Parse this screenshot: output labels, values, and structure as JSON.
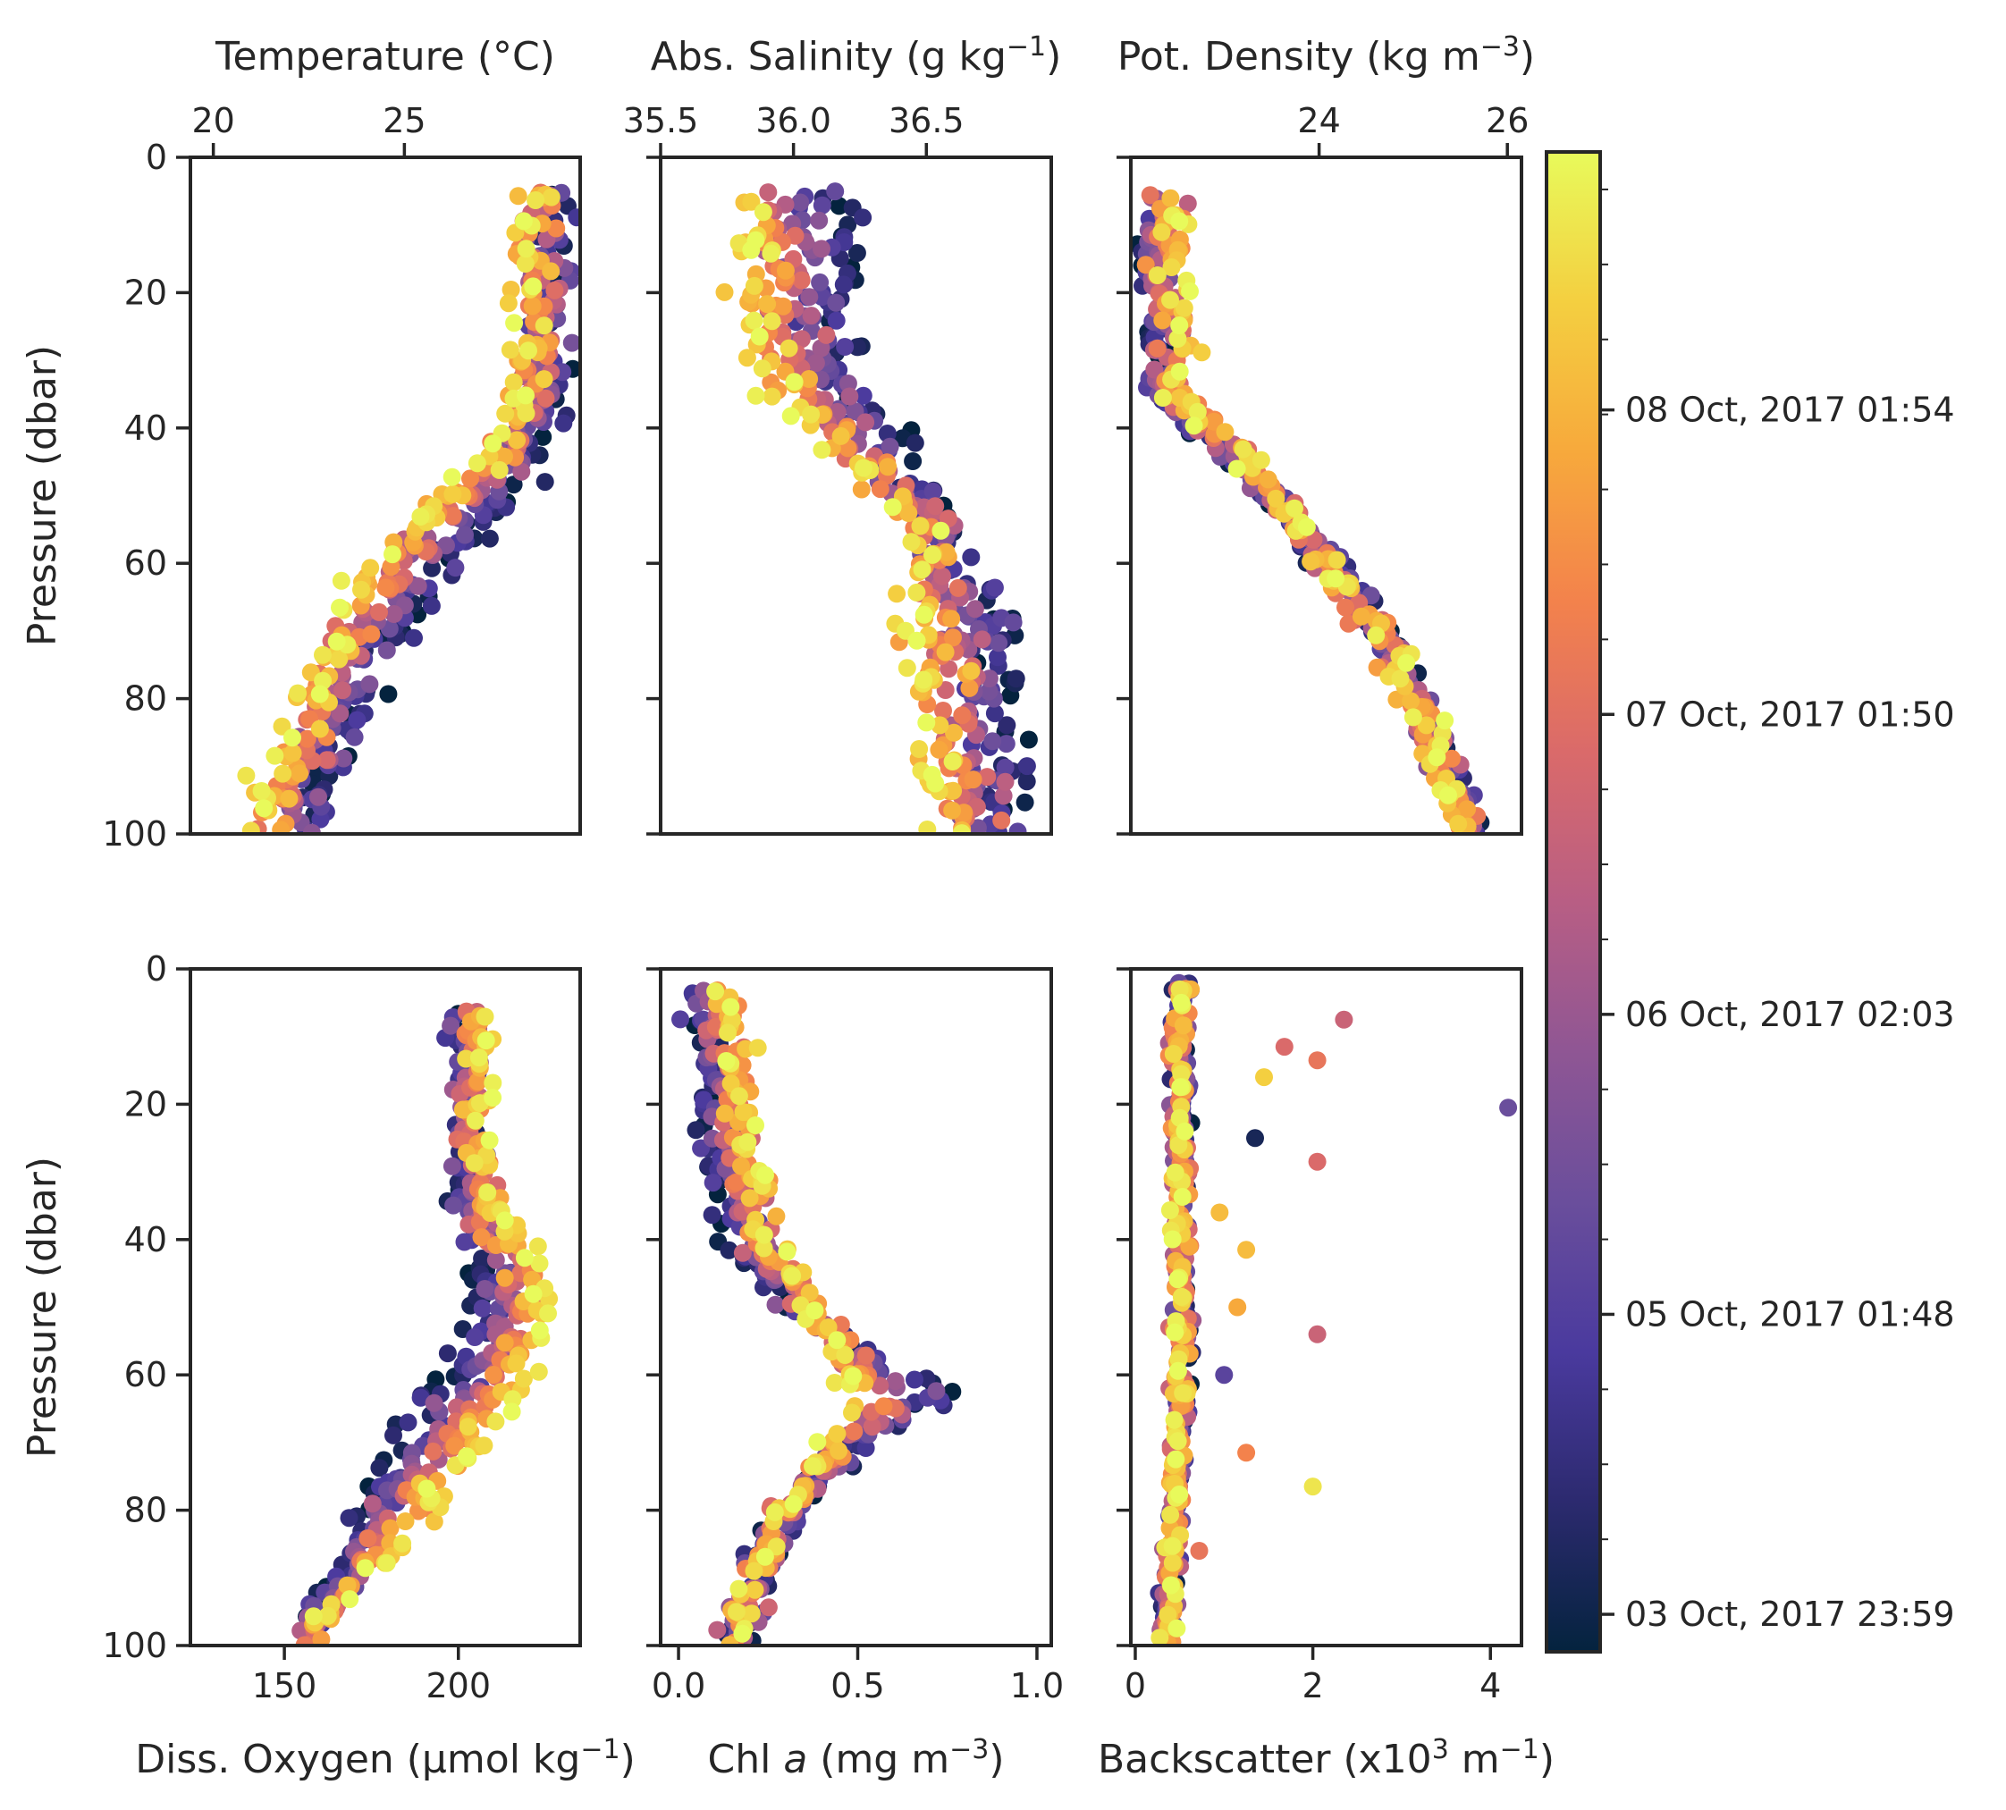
{
  "chart_data": [
    {
      "type": "scatter",
      "panel": "temperature",
      "xlabel": "Temperature (°C)",
      "xaxis_position": "top",
      "ylabel": "Pressure (dbar)",
      "xlim": [
        19.4,
        29.6
      ],
      "ylim": [
        100,
        0
      ],
      "xticks": [
        20,
        25
      ],
      "xtick_labels": [
        "20",
        "25"
      ],
      "yticks": [
        0,
        20,
        40,
        60,
        80,
        100
      ],
      "ytick_labels": [
        "0",
        "20",
        "40",
        "60",
        "80",
        "100"
      ],
      "profile": {
        "pressure": [
          5,
          20,
          30,
          38,
          42,
          46,
          50,
          55,
          60,
          65,
          70,
          75,
          80,
          85,
          90,
          95,
          100
        ],
        "value_early": [
          28.9,
          28.9,
          28.9,
          28.8,
          28.6,
          28.3,
          27.8,
          27.2,
          26.4,
          25.4,
          24.9,
          24.5,
          24.1,
          23.7,
          23.3,
          22.9,
          22.5
        ],
        "value_late": [
          28.2,
          28.2,
          28.2,
          28.0,
          27.4,
          26.6,
          25.8,
          25.0,
          24.2,
          23.6,
          23.1,
          22.7,
          22.3,
          22.0,
          21.6,
          21.3,
          21.0
        ]
      },
      "spread": 0.45
    },
    {
      "type": "scatter",
      "panel": "salinity",
      "xlabel_parts": [
        "Abs. Salinity (g kg",
        "−1",
        ")"
      ],
      "xaxis_position": "top",
      "xlim": [
        35.5,
        36.97
      ],
      "ylim": [
        100,
        0
      ],
      "xticks": [
        35.5,
        36.0,
        36.5
      ],
      "xtick_labels": [
        "35.5",
        "36.0",
        "36.5"
      ],
      "yticks": [
        0,
        20,
        40,
        60,
        80,
        100
      ],
      "profile": {
        "pressure": [
          5,
          20,
          30,
          35,
          40,
          45,
          50,
          55,
          60,
          65,
          70,
          80,
          90,
          100
        ],
        "value_early": [
          36.2,
          36.2,
          36.2,
          36.28,
          36.35,
          36.43,
          36.5,
          36.6,
          36.68,
          36.76,
          36.8,
          36.8,
          36.82,
          36.82
        ],
        "value_late": [
          35.8,
          35.8,
          35.85,
          35.95,
          36.05,
          36.2,
          36.38,
          36.45,
          36.45,
          36.43,
          36.45,
          36.48,
          36.52,
          36.58
        ]
      },
      "spread": 0.08
    },
    {
      "type": "scatter",
      "panel": "potential_density",
      "xlabel_parts": [
        "Pot. Density (kg m",
        "−3",
        ")"
      ],
      "xaxis_position": "top",
      "xlim": [
        22.0,
        26.15
      ],
      "ylim": [
        100,
        0
      ],
      "xticks": [
        24,
        26
      ],
      "xtick_labels": [
        "24",
        "26"
      ],
      "yticks": [
        0,
        20,
        40,
        60,
        80,
        100
      ],
      "profile": {
        "pressure": [
          5,
          20,
          30,
          36,
          40,
          45,
          50,
          55,
          60,
          65,
          70,
          75,
          80,
          85,
          90,
          95,
          100
        ],
        "value_early": [
          22.2,
          22.2,
          22.25,
          22.3,
          22.6,
          23.1,
          23.4,
          23.8,
          24.1,
          24.4,
          24.6,
          24.85,
          25.0,
          25.2,
          25.35,
          25.5,
          25.65
        ],
        "value_late": [
          22.5,
          22.5,
          22.55,
          22.6,
          22.9,
          23.3,
          23.6,
          23.85,
          24.1,
          24.35,
          24.55,
          24.8,
          25.0,
          25.15,
          25.3,
          25.45,
          25.6
        ]
      },
      "spread": 0.15
    },
    {
      "type": "scatter",
      "panel": "dissolved_oxygen",
      "xlabel_parts": [
        "Diss. Oxygen (µmol kg",
        "−1",
        ")"
      ],
      "xaxis_position": "bottom",
      "ylabel": "Pressure (dbar)",
      "xlim": [
        123,
        235
      ],
      "ylim": [
        100,
        0
      ],
      "xticks": [
        150,
        200
      ],
      "xtick_labels": [
        "150",
        "200"
      ],
      "yticks": [
        0,
        20,
        40,
        60,
        80,
        100
      ],
      "ytick_labels": [
        "0",
        "20",
        "40",
        "60",
        "80",
        "100"
      ],
      "profile": {
        "pressure": [
          6,
          20,
          30,
          35,
          40,
          45,
          50,
          55,
          60,
          65,
          70,
          75,
          80,
          85,
          90,
          95,
          100
        ],
        "value_early": [
          201,
          201,
          201,
          202,
          204,
          206,
          206,
          203,
          197,
          188,
          182,
          177,
          172,
          168,
          164,
          160,
          157
        ],
        "value_late": [
          206,
          206,
          207,
          211,
          217,
          222,
          225,
          223,
          219,
          213,
          206,
          199,
          192,
          184,
          174,
          164,
          152
        ]
      },
      "spread": 4
    },
    {
      "type": "scatter",
      "panel": "chlorophyll_a",
      "xlabel_parts": [
        "Chl ",
        "a",
        " (mg m",
        "−3",
        ")"
      ],
      "xaxis_position": "bottom",
      "xlim": [
        -0.05,
        1.04
      ],
      "ylim": [
        100,
        0
      ],
      "xticks": [
        0.0,
        0.5,
        1.0
      ],
      "xtick_labels": [
        "0.0",
        "0.5",
        "1.0"
      ],
      "yticks": [
        0,
        20,
        40,
        60,
        80,
        100
      ],
      "profile": {
        "pressure": [
          3,
          10,
          20,
          30,
          40,
          45,
          50,
          55,
          60,
          62,
          65,
          68,
          70,
          75,
          80,
          85,
          90,
          95,
          100
        ],
        "value_early": [
          0.05,
          0.07,
          0.08,
          0.1,
          0.15,
          0.22,
          0.32,
          0.45,
          0.65,
          0.8,
          0.72,
          0.6,
          0.52,
          0.4,
          0.32,
          0.26,
          0.22,
          0.19,
          0.17
        ],
        "value_late": [
          0.15,
          0.17,
          0.19,
          0.22,
          0.27,
          0.33,
          0.38,
          0.42,
          0.45,
          0.48,
          0.47,
          0.44,
          0.42,
          0.36,
          0.3,
          0.25,
          0.21,
          0.18,
          0.16
        ]
      },
      "spread": 0.04
    },
    {
      "type": "scatter",
      "panel": "backscatter",
      "xlabel_parts": [
        "Backscatter (x10",
        "3",
        " m",
        "−1",
        ")"
      ],
      "xaxis_position": "bottom",
      "xlim": [
        -0.05,
        4.35
      ],
      "ylim": [
        100,
        0
      ],
      "xticks": [
        0,
        2,
        4
      ],
      "xtick_labels": [
        "0",
        "2",
        "4"
      ],
      "yticks": [
        0,
        20,
        40,
        60,
        80,
        100
      ],
      "profile": {
        "pressure": [
          2,
          20,
          40,
          60,
          80,
          100
        ],
        "value_early": [
          0.5,
          0.5,
          0.55,
          0.55,
          0.45,
          0.35
        ],
        "value_late": [
          0.5,
          0.5,
          0.5,
          0.5,
          0.45,
          0.35
        ]
      },
      "spread": 0.08,
      "outliers": [
        {
          "x": 2.35,
          "y": 7.5,
          "t": 0.55
        },
        {
          "x": 1.68,
          "y": 11.5,
          "t": 0.6
        },
        {
          "x": 2.05,
          "y": 13.5,
          "t": 0.65
        },
        {
          "x": 1.45,
          "y": 16,
          "t": 0.9
        },
        {
          "x": 4.2,
          "y": 20.5,
          "t": 0.3
        },
        {
          "x": 1.35,
          "y": 25,
          "t": 0.05
        },
        {
          "x": 2.05,
          "y": 28.5,
          "t": 0.6
        },
        {
          "x": 0.95,
          "y": 36,
          "t": 0.85
        },
        {
          "x": 1.25,
          "y": 41.5,
          "t": 0.85
        },
        {
          "x": 1.15,
          "y": 50,
          "t": 0.8
        },
        {
          "x": 2.05,
          "y": 54,
          "t": 0.55
        },
        {
          "x": 1.0,
          "y": 60,
          "t": 0.25
        },
        {
          "x": 1.25,
          "y": 71.5,
          "t": 0.7
        },
        {
          "x": 2.0,
          "y": 76.5,
          "t": 0.95
        },
        {
          "x": 0.72,
          "y": 86,
          "t": 0.65
        }
      ]
    }
  ],
  "colorbar": {
    "colormap": "thermal",
    "colors": [
      "#04233e",
      "#2c2a6f",
      "#4a3a9e",
      "#6a4e9c",
      "#8f5694",
      "#b85e84",
      "#da6a6a",
      "#f3824c",
      "#f7a93c",
      "#f4cf40",
      "#e8fa5b"
    ],
    "ticks": [
      {
        "frac": 0.025,
        "label": "03 Oct, 2017 23:59"
      },
      {
        "frac": 0.225,
        "label": "05 Oct, 2017 01:48"
      },
      {
        "frac": 0.425,
        "label": "06 Oct, 2017 02:03"
      },
      {
        "frac": 0.625,
        "label": "07 Oct, 2017 01:50"
      },
      {
        "frac": 0.828,
        "label": "08 Oct, 2017 01:54"
      }
    ],
    "minor_ticks": 41
  },
  "marker_size": 5,
  "points_per_time_step": 12,
  "time_steps": 40
}
